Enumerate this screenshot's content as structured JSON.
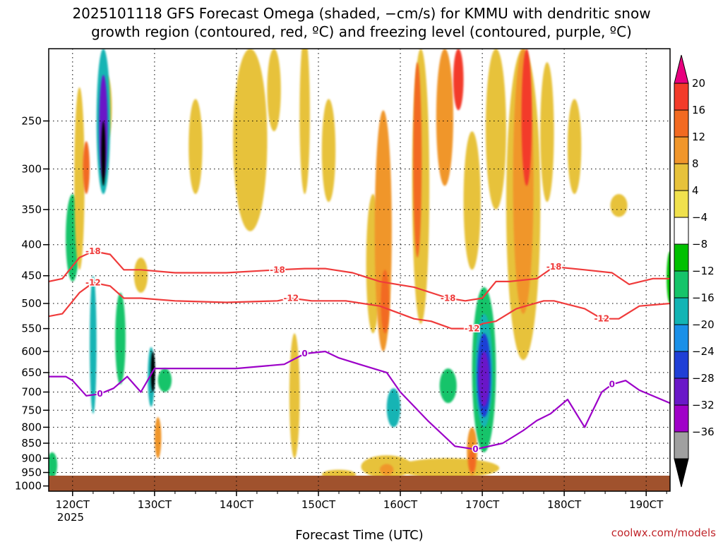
{
  "title": {
    "line1": "2025101118 GFS Forecast Omega (shaded, −cm/s) for KMMU with dendritic snow",
    "line2": "growth region (contoured, red, ºC) and freezing level (contoured, purple, ºC)"
  },
  "x_axis_label": "Forecast Time (UTC)",
  "year_label": "2025",
  "credit": "coolwx.com/models",
  "chart_data": {
    "type": "heatmap",
    "title": "2025101118 GFS Forecast Omega (shaded, −cm/s) for KMMU with dendritic snow growth region (contoured, red, ºC) and freezing level (contoured, purple, ºC)",
    "xlabel": "Forecast Time (UTC)",
    "ylabel": "",
    "x_ticks": [
      {
        "label": "120CT",
        "hour": 0
      },
      {
        "label": "130CT",
        "hour": 24
      },
      {
        "label": "140CT",
        "hour": 48
      },
      {
        "label": "150CT",
        "hour": 72
      },
      {
        "label": "160CT",
        "hour": 96
      },
      {
        "label": "170CT",
        "hour": 120
      },
      {
        "label": "180CT",
        "hour": 144
      },
      {
        "label": "190CT",
        "hour": 168
      }
    ],
    "xlim": [
      -7,
      175
    ],
    "y_ticks": [
      250,
      300,
      350,
      400,
      450,
      500,
      550,
      600,
      650,
      700,
      750,
      800,
      850,
      900,
      950,
      1000
    ],
    "ylim": [
      190,
      1020
    ],
    "y_scale": "log-pressure (hPa)",
    "surface_pressure": 1000,
    "colorbar": {
      "labels": [
        "20",
        "16",
        "12",
        "8",
        "4",
        "−4",
        "−8",
        "−12",
        "−16",
        "−20",
        "−24",
        "−28",
        "−32",
        "−36"
      ],
      "bins": [
        {
          "range": ">20",
          "color": "#e8007f"
        },
        {
          "range": "16 to 20",
          "color": "#f33b2a"
        },
        {
          "range": "12 to 16",
          "color": "#f26a21"
        },
        {
          "range": "8 to 12",
          "color": "#f0962b"
        },
        {
          "range": "4 to 8",
          "color": "#e7c23b"
        },
        {
          "range": "0 to 4",
          "color": "#f0e14d"
        },
        {
          "range": "-4 to 4",
          "color": "#ffffff"
        },
        {
          "range": "-8 to -4",
          "color": "#00c000"
        },
        {
          "range": "-12 to -8",
          "color": "#16c46a"
        },
        {
          "range": "-16 to -12",
          "color": "#12b4b4"
        },
        {
          "range": "-20 to -16",
          "color": "#1a90e8"
        },
        {
          "range": "-24 to -20",
          "color": "#1f3fd6"
        },
        {
          "range": "-28 to -24",
          "color": "#6a18c8"
        },
        {
          "range": "-32 to -28",
          "color": "#a000c8"
        },
        {
          "range": "-36 to -32",
          "color": "#a0a0a0"
        },
        {
          "range": "<-36",
          "color": "#000000"
        }
      ]
    },
    "omega_regions": [
      {
        "t": 120.5,
        "p0": 470,
        "p1": 880,
        "v": -9,
        "w": 7
      },
      {
        "t": 120.5,
        "p0": 520,
        "p1": 800,
        "v": -14,
        "w": 5
      },
      {
        "t": 120.5,
        "p0": 560,
        "p1": 770,
        "v": -20,
        "w": 4
      },
      {
        "t": 120.5,
        "p0": 600,
        "p1": 740,
        "v": -26,
        "w": 3
      },
      {
        "t": 0,
        "p0": 330,
        "p1": 460,
        "v": -8,
        "w": 4
      },
      {
        "t": 9,
        "p0": 190,
        "p1": 330,
        "v": -14,
        "w": 4
      },
      {
        "t": 9,
        "p0": 210,
        "p1": 310,
        "v": -26,
        "w": 2.5
      },
      {
        "t": 9,
        "p0": 250,
        "p1": 320,
        "v": -40,
        "w": 1.2
      },
      {
        "t": 6,
        "p0": 450,
        "p1": 760,
        "v": -12,
        "w": 2
      },
      {
        "t": 23,
        "p0": 590,
        "p1": 740,
        "v": -14,
        "w": 2
      },
      {
        "t": 23.5,
        "p0": 600,
        "p1": 700,
        "v": -40,
        "w": 0.8
      },
      {
        "t": 14,
        "p0": 480,
        "p1": 680,
        "v": -8,
        "w": 3
      },
      {
        "t": 27,
        "p0": 640,
        "p1": 700,
        "v": -8,
        "w": 4
      },
      {
        "t": -6,
        "p0": 880,
        "p1": 970,
        "v": -8,
        "w": 3
      },
      {
        "t": 94,
        "p0": 690,
        "p1": 800,
        "v": -12,
        "w": 4
      },
      {
        "t": 110,
        "p0": 640,
        "p1": 730,
        "v": -8,
        "w": 5
      },
      {
        "t": 175,
        "p0": 410,
        "p1": 500,
        "v": -6,
        "w": 2
      },
      {
        "t": 2,
        "p0": 220,
        "p1": 440,
        "v": 8,
        "w": 3
      },
      {
        "t": 4,
        "p0": 270,
        "p1": 330,
        "v": 14,
        "w": 2
      },
      {
        "t": 10,
        "p0": 210,
        "p1": 270,
        "v": 8,
        "w": 3
      },
      {
        "t": 20,
        "p0": 420,
        "p1": 480,
        "v": 8,
        "w": 4
      },
      {
        "t": 36,
        "p0": 230,
        "p1": 330,
        "v": 6,
        "w": 4
      },
      {
        "t": 25,
        "p0": 770,
        "p1": 900,
        "v": 10,
        "w": 2
      },
      {
        "t": 52,
        "p0": 190,
        "p1": 380,
        "v": 6,
        "w": 10
      },
      {
        "t": 59,
        "p0": 190,
        "p1": 260,
        "v": 6,
        "w": 4
      },
      {
        "t": 65,
        "p0": 560,
        "p1": 900,
        "v": 6,
        "w": 3
      },
      {
        "t": 68,
        "p0": 180,
        "p1": 330,
        "v": 6,
        "w": 3
      },
      {
        "t": 75,
        "p0": 230,
        "p1": 340,
        "v": 6,
        "w": 4
      },
      {
        "t": 88,
        "p0": 330,
        "p1": 560,
        "v": 6,
        "w": 4
      },
      {
        "t": 91,
        "p0": 240,
        "p1": 600,
        "v": 10,
        "w": 5
      },
      {
        "t": 91.5,
        "p0": 440,
        "p1": 560,
        "v": 16,
        "w": 2.5
      },
      {
        "t": 102,
        "p0": 190,
        "p1": 540,
        "v": 8,
        "w": 5
      },
      {
        "t": 101,
        "p0": 200,
        "p1": 420,
        "v": 16,
        "w": 2.5
      },
      {
        "t": 109,
        "p0": 190,
        "p1": 320,
        "v": 12,
        "w": 5
      },
      {
        "t": 113,
        "p0": 190,
        "p1": 240,
        "v": 20,
        "w": 3
      },
      {
        "t": 117,
        "p0": 260,
        "p1": 440,
        "v": 6,
        "w": 5
      },
      {
        "t": 124,
        "p0": 190,
        "p1": 350,
        "v": 8,
        "w": 6
      },
      {
        "t": 132,
        "p0": 190,
        "p1": 620,
        "v": 6,
        "w": 10
      },
      {
        "t": 132,
        "p0": 190,
        "p1": 520,
        "v": 12,
        "w": 6
      },
      {
        "t": 133,
        "p0": 190,
        "p1": 320,
        "v": 20,
        "w": 3
      },
      {
        "t": 139,
        "p0": 200,
        "p1": 340,
        "v": 6,
        "w": 4
      },
      {
        "t": 147,
        "p0": 230,
        "p1": 330,
        "v": 6,
        "w": 4
      },
      {
        "t": 160,
        "p0": 330,
        "p1": 360,
        "v": 6,
        "w": 5
      },
      {
        "t": 117,
        "p0": 800,
        "p1": 960,
        "v": 10,
        "w": 3
      },
      {
        "t": 117,
        "p0": 870,
        "p1": 950,
        "v": 16,
        "w": 2
      },
      {
        "t": 110,
        "p0": 900,
        "p1": 970,
        "v": 6,
        "w": 30
      },
      {
        "t": 92,
        "p0": 890,
        "p1": 970,
        "v": 6,
        "w": 15
      },
      {
        "t": 92,
        "p0": 920,
        "p1": 960,
        "v": 12,
        "w": 4
      },
      {
        "t": 78,
        "p0": 940,
        "p1": 975,
        "v": 6,
        "w": 10
      }
    ],
    "contours_red": [
      {
        "label": "-18",
        "points": [
          [
            -7,
            460
          ],
          [
            -3,
            455
          ],
          [
            2,
            420
          ],
          [
            6,
            410
          ],
          [
            11,
            415
          ],
          [
            15,
            440
          ],
          [
            20,
            440
          ],
          [
            30,
            445
          ],
          [
            45,
            445
          ],
          [
            60,
            440
          ],
          [
            68,
            438
          ],
          [
            74,
            438
          ],
          [
            82,
            445
          ],
          [
            90,
            460
          ],
          [
            100,
            470
          ],
          [
            110,
            490
          ],
          [
            115,
            495
          ],
          [
            120,
            490
          ],
          [
            124,
            460
          ],
          [
            128,
            460
          ],
          [
            136,
            455
          ],
          [
            141,
            435
          ],
          [
            150,
            440
          ],
          [
            158,
            445
          ],
          [
            163,
            465
          ],
          [
            170,
            455
          ],
          [
            175,
            455
          ]
        ]
      },
      {
        "label": "-12",
        "points": [
          [
            -7,
            525
          ],
          [
            -3,
            520
          ],
          [
            2,
            480
          ],
          [
            6,
            462
          ],
          [
            11,
            468
          ],
          [
            15,
            490
          ],
          [
            20,
            490
          ],
          [
            30,
            495
          ],
          [
            45,
            498
          ],
          [
            60,
            495
          ],
          [
            64,
            490
          ],
          [
            70,
            495
          ],
          [
            80,
            495
          ],
          [
            90,
            505
          ],
          [
            100,
            530
          ],
          [
            105,
            535
          ],
          [
            111,
            550
          ],
          [
            117,
            550
          ],
          [
            120,
            540
          ],
          [
            124,
            535
          ],
          [
            130,
            510
          ],
          [
            138,
            495
          ],
          [
            141,
            495
          ],
          [
            150,
            510
          ],
          [
            155,
            530
          ],
          [
            160,
            530
          ],
          [
            166,
            505
          ],
          [
            175,
            500
          ]
        ]
      }
    ],
    "contours_purple": [
      {
        "label": "0",
        "points": [
          [
            -7,
            660
          ],
          [
            -2,
            660
          ],
          [
            0,
            670
          ],
          [
            4,
            710
          ],
          [
            8,
            705
          ],
          [
            12,
            690
          ],
          [
            16,
            660
          ],
          [
            20,
            700
          ],
          [
            24,
            640
          ],
          [
            30,
            640
          ],
          [
            48,
            640
          ],
          [
            62,
            630
          ],
          [
            68,
            605
          ],
          [
            74,
            600
          ],
          [
            78,
            615
          ],
          [
            84,
            630
          ],
          [
            92,
            650
          ],
          [
            96,
            700
          ],
          [
            104,
            780
          ],
          [
            112,
            860
          ],
          [
            118,
            870
          ],
          [
            126,
            850
          ],
          [
            132,
            810
          ],
          [
            136,
            780
          ],
          [
            140,
            760
          ],
          [
            145,
            720
          ],
          [
            150,
            800
          ],
          [
            155,
            700
          ],
          [
            158,
            680
          ],
          [
            162,
            670
          ],
          [
            166,
            695
          ],
          [
            175,
            730
          ]
        ]
      }
    ]
  }
}
